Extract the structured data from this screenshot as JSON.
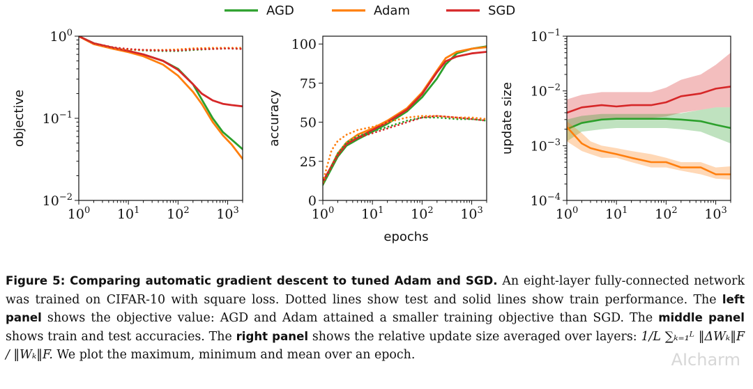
{
  "legend": {
    "items": [
      {
        "label": "AGD",
        "color": "#2ca02c"
      },
      {
        "label": "Adam",
        "color": "#ff7f0e"
      },
      {
        "label": "SGD",
        "color": "#d62728"
      }
    ]
  },
  "caption": {
    "figure_label": "Figure 5:",
    "title": "Comparing automatic gradient descent to tuned Adam and SGD.",
    "text1": "An eight-layer fully-connected network was trained on CIFAR-10 with square loss. Dotted lines show test and solid lines show train performance. The",
    "left_panel_label": "left panel",
    "text2": "shows the objective value: AGD and Adam attained a smaller training objective than SGD. The",
    "middle_panel_label": "middle panel",
    "text3": "shows train and test accuracies. The",
    "right_panel_label": "right panel",
    "text4": "shows the relative update size averaged over layers:",
    "formula": "1/L ∑ₖ₌₁ᴸ ‖ΔWₖ‖F / ‖Wₖ‖F.",
    "text5": "We plot the maximum, minimum and mean over an epoch."
  },
  "watermark": "AIcharm",
  "chart_data": [
    {
      "type": "line",
      "ylabel": "objective",
      "xlabel": "",
      "xscale": "log",
      "yscale": "log",
      "xlim": [
        1,
        2000
      ],
      "ylim": [
        0.01,
        1
      ],
      "xticks": [
        {
          "v": 1,
          "label": "10",
          "exp": "0"
        },
        {
          "v": 10,
          "label": "10",
          "exp": "1"
        },
        {
          "v": 100,
          "label": "10",
          "exp": "2"
        },
        {
          "v": 1000,
          "label": "10",
          "exp": "3"
        }
      ],
      "yticks": [
        {
          "v": 0.01,
          "label": "10",
          "exp": "−2"
        },
        {
          "v": 0.1,
          "label": "10",
          "exp": "−1"
        },
        {
          "v": 1,
          "label": "10",
          "exp": "0"
        }
      ],
      "series": [
        {
          "name": "AGD",
          "style": "solid",
          "color": "#2ca02c",
          "x": [
            1,
            2,
            5,
            10,
            20,
            50,
            100,
            200,
            300,
            500,
            800,
            1200,
            2000
          ],
          "y": [
            1.0,
            0.82,
            0.72,
            0.66,
            0.6,
            0.5,
            0.4,
            0.26,
            0.17,
            0.1,
            0.068,
            0.055,
            0.042
          ]
        },
        {
          "name": "Adam",
          "style": "solid",
          "color": "#ff7f0e",
          "x": [
            1,
            2,
            5,
            10,
            20,
            50,
            100,
            200,
            300,
            500,
            800,
            1200,
            2000
          ],
          "y": [
            1.0,
            0.8,
            0.7,
            0.64,
            0.57,
            0.45,
            0.33,
            0.21,
            0.15,
            0.09,
            0.062,
            0.048,
            0.032
          ]
        },
        {
          "name": "SGD",
          "style": "solid",
          "color": "#d62728",
          "x": [
            1,
            2,
            5,
            10,
            20,
            50,
            100,
            200,
            300,
            500,
            800,
            1200,
            2000
          ],
          "y": [
            1.0,
            0.82,
            0.72,
            0.66,
            0.6,
            0.5,
            0.39,
            0.26,
            0.2,
            0.165,
            0.15,
            0.145,
            0.14
          ]
        },
        {
          "name": "AGD",
          "style": "dotted",
          "color": "#2ca02c",
          "x": [
            1,
            2,
            5,
            10,
            20,
            50,
            100,
            200,
            500,
            1000,
            2000
          ],
          "y": [
            1.0,
            0.82,
            0.72,
            0.69,
            0.67,
            0.66,
            0.66,
            0.68,
            0.7,
            0.71,
            0.7
          ]
        },
        {
          "name": "Adam",
          "style": "dotted",
          "color": "#ff7f0e",
          "x": [
            1,
            2,
            5,
            10,
            20,
            50,
            100,
            200,
            500,
            1000,
            2000
          ],
          "y": [
            1.0,
            0.8,
            0.71,
            0.69,
            0.68,
            0.68,
            0.69,
            0.71,
            0.72,
            0.72,
            0.72
          ]
        },
        {
          "name": "SGD",
          "style": "dotted",
          "color": "#d62728",
          "x": [
            1,
            2,
            5,
            10,
            20,
            50,
            100,
            200,
            500,
            1000,
            2000
          ],
          "y": [
            1.0,
            0.82,
            0.73,
            0.7,
            0.68,
            0.67,
            0.67,
            0.69,
            0.7,
            0.71,
            0.7
          ]
        }
      ]
    },
    {
      "type": "line",
      "ylabel": "accuracy",
      "xlabel": "epochs",
      "xscale": "log",
      "yscale": "linear",
      "xlim": [
        1,
        2000
      ],
      "ylim": [
        0,
        105
      ],
      "xticks": [
        {
          "v": 1,
          "label": "10",
          "exp": "0"
        },
        {
          "v": 10,
          "label": "10",
          "exp": "1"
        },
        {
          "v": 100,
          "label": "10",
          "exp": "2"
        },
        {
          "v": 1000,
          "label": "10",
          "exp": "3"
        }
      ],
      "yticks": [
        {
          "v": 0,
          "label": "0"
        },
        {
          "v": 25,
          "label": "25"
        },
        {
          "v": 50,
          "label": "50"
        },
        {
          "v": 75,
          "label": "75"
        },
        {
          "v": 100,
          "label": "100"
        }
      ],
      "series": [
        {
          "name": "AGD",
          "style": "solid",
          "color": "#2ca02c",
          "x": [
            1,
            2,
            3,
            5,
            10,
            20,
            50,
            100,
            200,
            300,
            500,
            1000,
            2000
          ],
          "y": [
            10,
            28,
            35,
            39,
            44,
            49,
            57,
            66,
            78,
            87,
            94,
            97,
            98.5
          ]
        },
        {
          "name": "Adam",
          "style": "solid",
          "color": "#ff7f0e",
          "x": [
            1,
            2,
            3,
            5,
            10,
            20,
            50,
            100,
            200,
            300,
            500,
            1000,
            2000
          ],
          "y": [
            11,
            30,
            37,
            42,
            46,
            51,
            59,
            69,
            83,
            91,
            95,
            97,
            98
          ]
        },
        {
          "name": "SGD",
          "style": "solid",
          "color": "#d62728",
          "x": [
            1,
            2,
            3,
            5,
            10,
            20,
            50,
            100,
            200,
            300,
            500,
            1000,
            2000
          ],
          "y": [
            12,
            29,
            36,
            40,
            45,
            50,
            58,
            68,
            82,
            89,
            92,
            94,
            95
          ]
        },
        {
          "name": "AGD",
          "style": "dotted",
          "color": "#2ca02c",
          "x": [
            1,
            2,
            3,
            5,
            10,
            20,
            50,
            100,
            200,
            500,
            1000,
            2000
          ],
          "y": [
            10,
            30,
            37,
            41,
            44,
            47,
            51,
            53,
            53,
            52,
            52,
            51
          ]
        },
        {
          "name": "Adam",
          "style": "dotted",
          "color": "#ff7f0e",
          "x": [
            1,
            1.5,
            2,
            3,
            5,
            10,
            20,
            50,
            100,
            200,
            500,
            1000,
            2000
          ],
          "y": [
            12,
            32,
            38,
            42,
            45,
            47,
            50,
            53,
            54,
            54,
            53,
            53,
            52
          ]
        },
        {
          "name": "SGD",
          "style": "dotted",
          "color": "#d62728",
          "x": [
            1,
            2,
            3,
            5,
            10,
            20,
            50,
            100,
            200,
            500,
            1000,
            2000
          ],
          "y": [
            11,
            29,
            36,
            40,
            43,
            46,
            50,
            53,
            54,
            53,
            52,
            51
          ]
        }
      ]
    },
    {
      "type": "area",
      "ylabel": "update size",
      "xlabel": "",
      "xscale": "log",
      "yscale": "log",
      "xlim": [
        1,
        2000
      ],
      "ylim": [
        0.0001,
        0.1
      ],
      "xticks": [
        {
          "v": 1,
          "label": "10",
          "exp": "0"
        },
        {
          "v": 10,
          "label": "10",
          "exp": "1"
        },
        {
          "v": 100,
          "label": "10",
          "exp": "2"
        },
        {
          "v": 1000,
          "label": "10",
          "exp": "3"
        }
      ],
      "yticks": [
        {
          "v": 0.0001,
          "label": "10",
          "exp": "−4"
        },
        {
          "v": 0.001,
          "label": "10",
          "exp": "−3"
        },
        {
          "v": 0.01,
          "label": "10",
          "exp": "−2"
        },
        {
          "v": 0.1,
          "label": "10",
          "exp": "−1"
        }
      ],
      "series": [
        {
          "name": "SGD",
          "color": "#d62728",
          "x": [
            1,
            2,
            5,
            10,
            20,
            50,
            100,
            200,
            500,
            1000,
            2000
          ],
          "mean": [
            0.004,
            0.005,
            0.0055,
            0.0052,
            0.0055,
            0.0055,
            0.0062,
            0.008,
            0.009,
            0.011,
            0.012
          ],
          "min": [
            0.002,
            0.0025,
            0.003,
            0.003,
            0.0032,
            0.0032,
            0.0034,
            0.004,
            0.0045,
            0.005,
            0.005
          ],
          "max": [
            0.007,
            0.0085,
            0.0095,
            0.0095,
            0.0095,
            0.0095,
            0.0115,
            0.016,
            0.02,
            0.03,
            0.05
          ]
        },
        {
          "name": "AGD",
          "color": "#2ca02c",
          "x": [
            1,
            2,
            5,
            10,
            20,
            50,
            100,
            200,
            500,
            1000,
            2000
          ],
          "mean": [
            0.002,
            0.0026,
            0.003,
            0.0031,
            0.0031,
            0.0031,
            0.0031,
            0.003,
            0.0028,
            0.0024,
            0.0021
          ],
          "min": [
            0.0012,
            0.0018,
            0.002,
            0.0021,
            0.0021,
            0.0021,
            0.0021,
            0.002,
            0.0018,
            0.0014,
            0.0011
          ],
          "max": [
            0.003,
            0.0035,
            0.0038,
            0.0038,
            0.0038,
            0.0038,
            0.0038,
            0.0039,
            0.0045,
            0.005,
            0.005
          ]
        },
        {
          "name": "Adam",
          "color": "#ff7f0e",
          "x": [
            1,
            2,
            3,
            5,
            10,
            20,
            50,
            100,
            200,
            500,
            1000,
            2000
          ],
          "mean": [
            0.0022,
            0.0011,
            0.0009,
            0.0008,
            0.0007,
            0.0006,
            0.0005,
            0.0005,
            0.0004,
            0.0004,
            0.0003,
            0.0003
          ],
          "min": [
            0.0012,
            0.0008,
            0.0007,
            0.0006,
            0.0006,
            0.0005,
            0.0004,
            0.0004,
            0.00035,
            0.0003,
            0.00025,
            0.00024
          ],
          "max": [
            0.0028,
            0.0017,
            0.0012,
            0.001,
            0.0009,
            0.0008,
            0.0007,
            0.0006,
            0.0005,
            0.0005,
            0.0004,
            0.00042
          ]
        }
      ]
    }
  ]
}
